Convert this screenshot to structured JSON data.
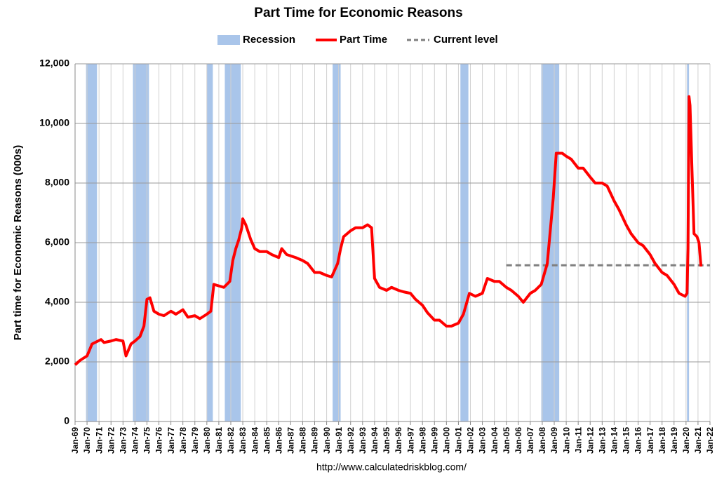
{
  "chart_data": {
    "type": "line",
    "title": "Part Time for Economic Reasons",
    "y_label": "Part time for Economic Reasons (000s)",
    "source": "http://www.calculatedriskblog.com/",
    "grid": true,
    "legend": "top",
    "xlim": [
      "1969-01",
      "2022-01"
    ],
    "ylim": [
      0,
      12000
    ],
    "yticks": [
      0,
      {
        "value": 2000,
        "label": "2,000"
      },
      {
        "value": 4000,
        "label": "4,000"
      },
      {
        "value": 6000,
        "label": "6,000"
      },
      {
        "value": 8000,
        "label": "8,000"
      },
      {
        "value": 10000,
        "label": "10,000"
      },
      {
        "value": 12000,
        "label": "12,000"
      }
    ],
    "xticks": [
      {
        "value": "1969-01",
        "label": "Jan-69"
      },
      {
        "value": "1970-01",
        "label": "Jan-70"
      },
      {
        "value": "1971-01",
        "label": "Jan-71"
      },
      {
        "value": "1972-01",
        "label": "Jan-72"
      },
      {
        "value": "1973-01",
        "label": "Jan-73"
      },
      {
        "value": "1974-01",
        "label": "Jan-74"
      },
      {
        "value": "1975-01",
        "label": "Jan-75"
      },
      {
        "value": "1976-01",
        "label": "Jan-76"
      },
      {
        "value": "1977-01",
        "label": "Jan-77"
      },
      {
        "value": "1978-01",
        "label": "Jan-78"
      },
      {
        "value": "1979-01",
        "label": "Jan-79"
      },
      {
        "value": "1980-01",
        "label": "Jan-80"
      },
      {
        "value": "1981-01",
        "label": "Jan-81"
      },
      {
        "value": "1982-01",
        "label": "Jan-82"
      },
      {
        "value": "1983-01",
        "label": "Jan-83"
      },
      {
        "value": "1984-01",
        "label": "Jan-84"
      },
      {
        "value": "1985-01",
        "label": "Jan-85"
      },
      {
        "value": "1986-01",
        "label": "Jan-86"
      },
      {
        "value": "1987-01",
        "label": "Jan-87"
      },
      {
        "value": "1988-01",
        "label": "Jan-88"
      },
      {
        "value": "1989-01",
        "label": "Jan-89"
      },
      {
        "value": "1990-01",
        "label": "Jan-90"
      },
      {
        "value": "1991-01",
        "label": "Jan-91"
      },
      {
        "value": "1992-01",
        "label": "Jan-92"
      },
      {
        "value": "1993-01",
        "label": "Jan-93"
      },
      {
        "value": "1994-01",
        "label": "Jan-94"
      },
      {
        "value": "1995-01",
        "label": "Jan-95"
      },
      {
        "value": "1996-01",
        "label": "Jan-96"
      },
      {
        "value": "1997-01",
        "label": "Jan-97"
      },
      {
        "value": "1998-01",
        "label": "Jan-98"
      },
      {
        "value": "1999-01",
        "label": "Jan-99"
      },
      {
        "value": "2000-01",
        "label": "Jan-00"
      },
      {
        "value": "2001-01",
        "label": "Jan-01"
      },
      {
        "value": "2002-01",
        "label": "Jan-02"
      },
      {
        "value": "2003-01",
        "label": "Jan-03"
      },
      {
        "value": "2004-01",
        "label": "Jan-04"
      },
      {
        "value": "2005-01",
        "label": "Jan-05"
      },
      {
        "value": "2006-01",
        "label": "Jan-06"
      },
      {
        "value": "2007-01",
        "label": "Jan-07"
      },
      {
        "value": "2008-01",
        "label": "Jan-08"
      },
      {
        "value": "2009-01",
        "label": "Jan-09"
      },
      {
        "value": "2010-01",
        "label": "Jan-10"
      },
      {
        "value": "2011-01",
        "label": "Jan-11"
      },
      {
        "value": "2012-01",
        "label": "Jan-12"
      },
      {
        "value": "2013-01",
        "label": "Jan-13"
      },
      {
        "value": "2014-01",
        "label": "Jan-14"
      },
      {
        "value": "2015-01",
        "label": "Jan-15"
      },
      {
        "value": "2016-01",
        "label": "Jan-16"
      },
      {
        "value": "2017-01",
        "label": "Jan-17"
      },
      {
        "value": "2018-01",
        "label": "Jan-18"
      },
      {
        "value": "2019-01",
        "label": "Jan-19"
      },
      {
        "value": "2020-01",
        "label": "Jan-20"
      },
      {
        "value": "2021-01",
        "label": "Jan-21"
      },
      {
        "value": "2022-01",
        "label": "Jan-22"
      }
    ],
    "recession": {
      "name": "Recession",
      "color": "#a9c5ea",
      "periods": [
        [
          "1969-12",
          "1970-11"
        ],
        [
          "1973-11",
          "1975-03"
        ],
        [
          "1980-01",
          "1980-07"
        ],
        [
          "1981-07",
          "1982-11"
        ],
        [
          "1990-07",
          "1991-03"
        ],
        [
          "2001-03",
          "2001-11"
        ],
        [
          "2007-12",
          "2009-06"
        ],
        [
          "2020-02",
          "2020-04"
        ]
      ]
    },
    "reference": {
      "name": "Current level",
      "color": "#7f7f7f",
      "value": 5240,
      "start": "2005-01"
    },
    "x": [
      "1969-01",
      "1969-06",
      "1970-01",
      "1970-06",
      "1970-12",
      "1971-03",
      "1971-06",
      "1972-01",
      "1972-06",
      "1973-01",
      "1973-04",
      "1973-09",
      "1974-01",
      "1974-06",
      "1974-10",
      "1975-01",
      "1975-04",
      "1975-08",
      "1976-01",
      "1976-06",
      "1977-01",
      "1977-06",
      "1978-01",
      "1978-06",
      "1979-01",
      "1979-06",
      "1980-01",
      "1980-05",
      "1980-08",
      "1981-01",
      "1981-06",
      "1981-12",
      "1982-03",
      "1982-06",
      "1982-09",
      "1982-12",
      "1983-01",
      "1983-04",
      "1983-09",
      "1984-01",
      "1984-06",
      "1985-01",
      "1985-06",
      "1986-01",
      "1986-04",
      "1986-09",
      "1987-06",
      "1988-01",
      "1988-06",
      "1989-01",
      "1989-06",
      "1990-01",
      "1990-06",
      "1990-12",
      "1991-03",
      "1991-06",
      "1992-01",
      "1992-06",
      "1993-01",
      "1993-06",
      "1993-10",
      "1994-01",
      "1994-06",
      "1995-01",
      "1995-06",
      "1996-01",
      "1996-06",
      "1997-01",
      "1997-06",
      "1998-01",
      "1998-06",
      "1999-01",
      "1999-06",
      "2000-01",
      "2000-06",
      "2001-01",
      "2001-06",
      "2001-12",
      "2002-06",
      "2003-01",
      "2003-06",
      "2004-01",
      "2004-06",
      "2005-01",
      "2005-06",
      "2006-01",
      "2006-06",
      "2007-01",
      "2007-06",
      "2007-12",
      "2008-06",
      "2008-12",
      "2009-03",
      "2009-09",
      "2010-01",
      "2010-06",
      "2011-01",
      "2011-06",
      "2012-01",
      "2012-06",
      "2013-01",
      "2013-06",
      "2014-01",
      "2014-06",
      "2015-01",
      "2015-06",
      "2016-01",
      "2016-06",
      "2017-01",
      "2017-06",
      "2018-01",
      "2018-06",
      "2019-01",
      "2019-06",
      "2019-12",
      "2020-02",
      "2020-03",
      "2020-04",
      "2020-05",
      "2020-07",
      "2020-09",
      "2020-12",
      "2021-02",
      "2021-04"
    ],
    "series": [
      {
        "name": "Part Time",
        "color": "#ff0000",
        "values": [
          1900,
          2050,
          2200,
          2600,
          2700,
          2750,
          2650,
          2700,
          2750,
          2700,
          2200,
          2600,
          2700,
          2850,
          3200,
          4100,
          4150,
          3700,
          3600,
          3550,
          3700,
          3600,
          3750,
          3500,
          3550,
          3450,
          3600,
          3700,
          4600,
          4550,
          4500,
          4700,
          5400,
          5800,
          6100,
          6500,
          6800,
          6600,
          6100,
          5800,
          5700,
          5700,
          5600,
          5500,
          5800,
          5600,
          5500,
          5400,
          5300,
          5000,
          5000,
          4900,
          4850,
          5300,
          5800,
          6200,
          6400,
          6500,
          6500,
          6600,
          6500,
          4800,
          4500,
          4400,
          4500,
          4400,
          4350,
          4300,
          4100,
          3900,
          3650,
          3400,
          3400,
          3200,
          3200,
          3300,
          3600,
          4300,
          4200,
          4300,
          4800,
          4700,
          4700,
          4500,
          4400,
          4200,
          4000,
          4300,
          4400,
          4600,
          5300,
          7500,
          9000,
          9000,
          8900,
          8800,
          8500,
          8500,
          8200,
          8000,
          8000,
          7900,
          7400,
          7100,
          6600,
          6300,
          6000,
          5900,
          5600,
          5300,
          5000,
          4900,
          4600,
          4300,
          4200,
          4300,
          5800,
          10900,
          10600,
          8400,
          6300,
          6200,
          6000,
          5200
        ]
      }
    ]
  }
}
